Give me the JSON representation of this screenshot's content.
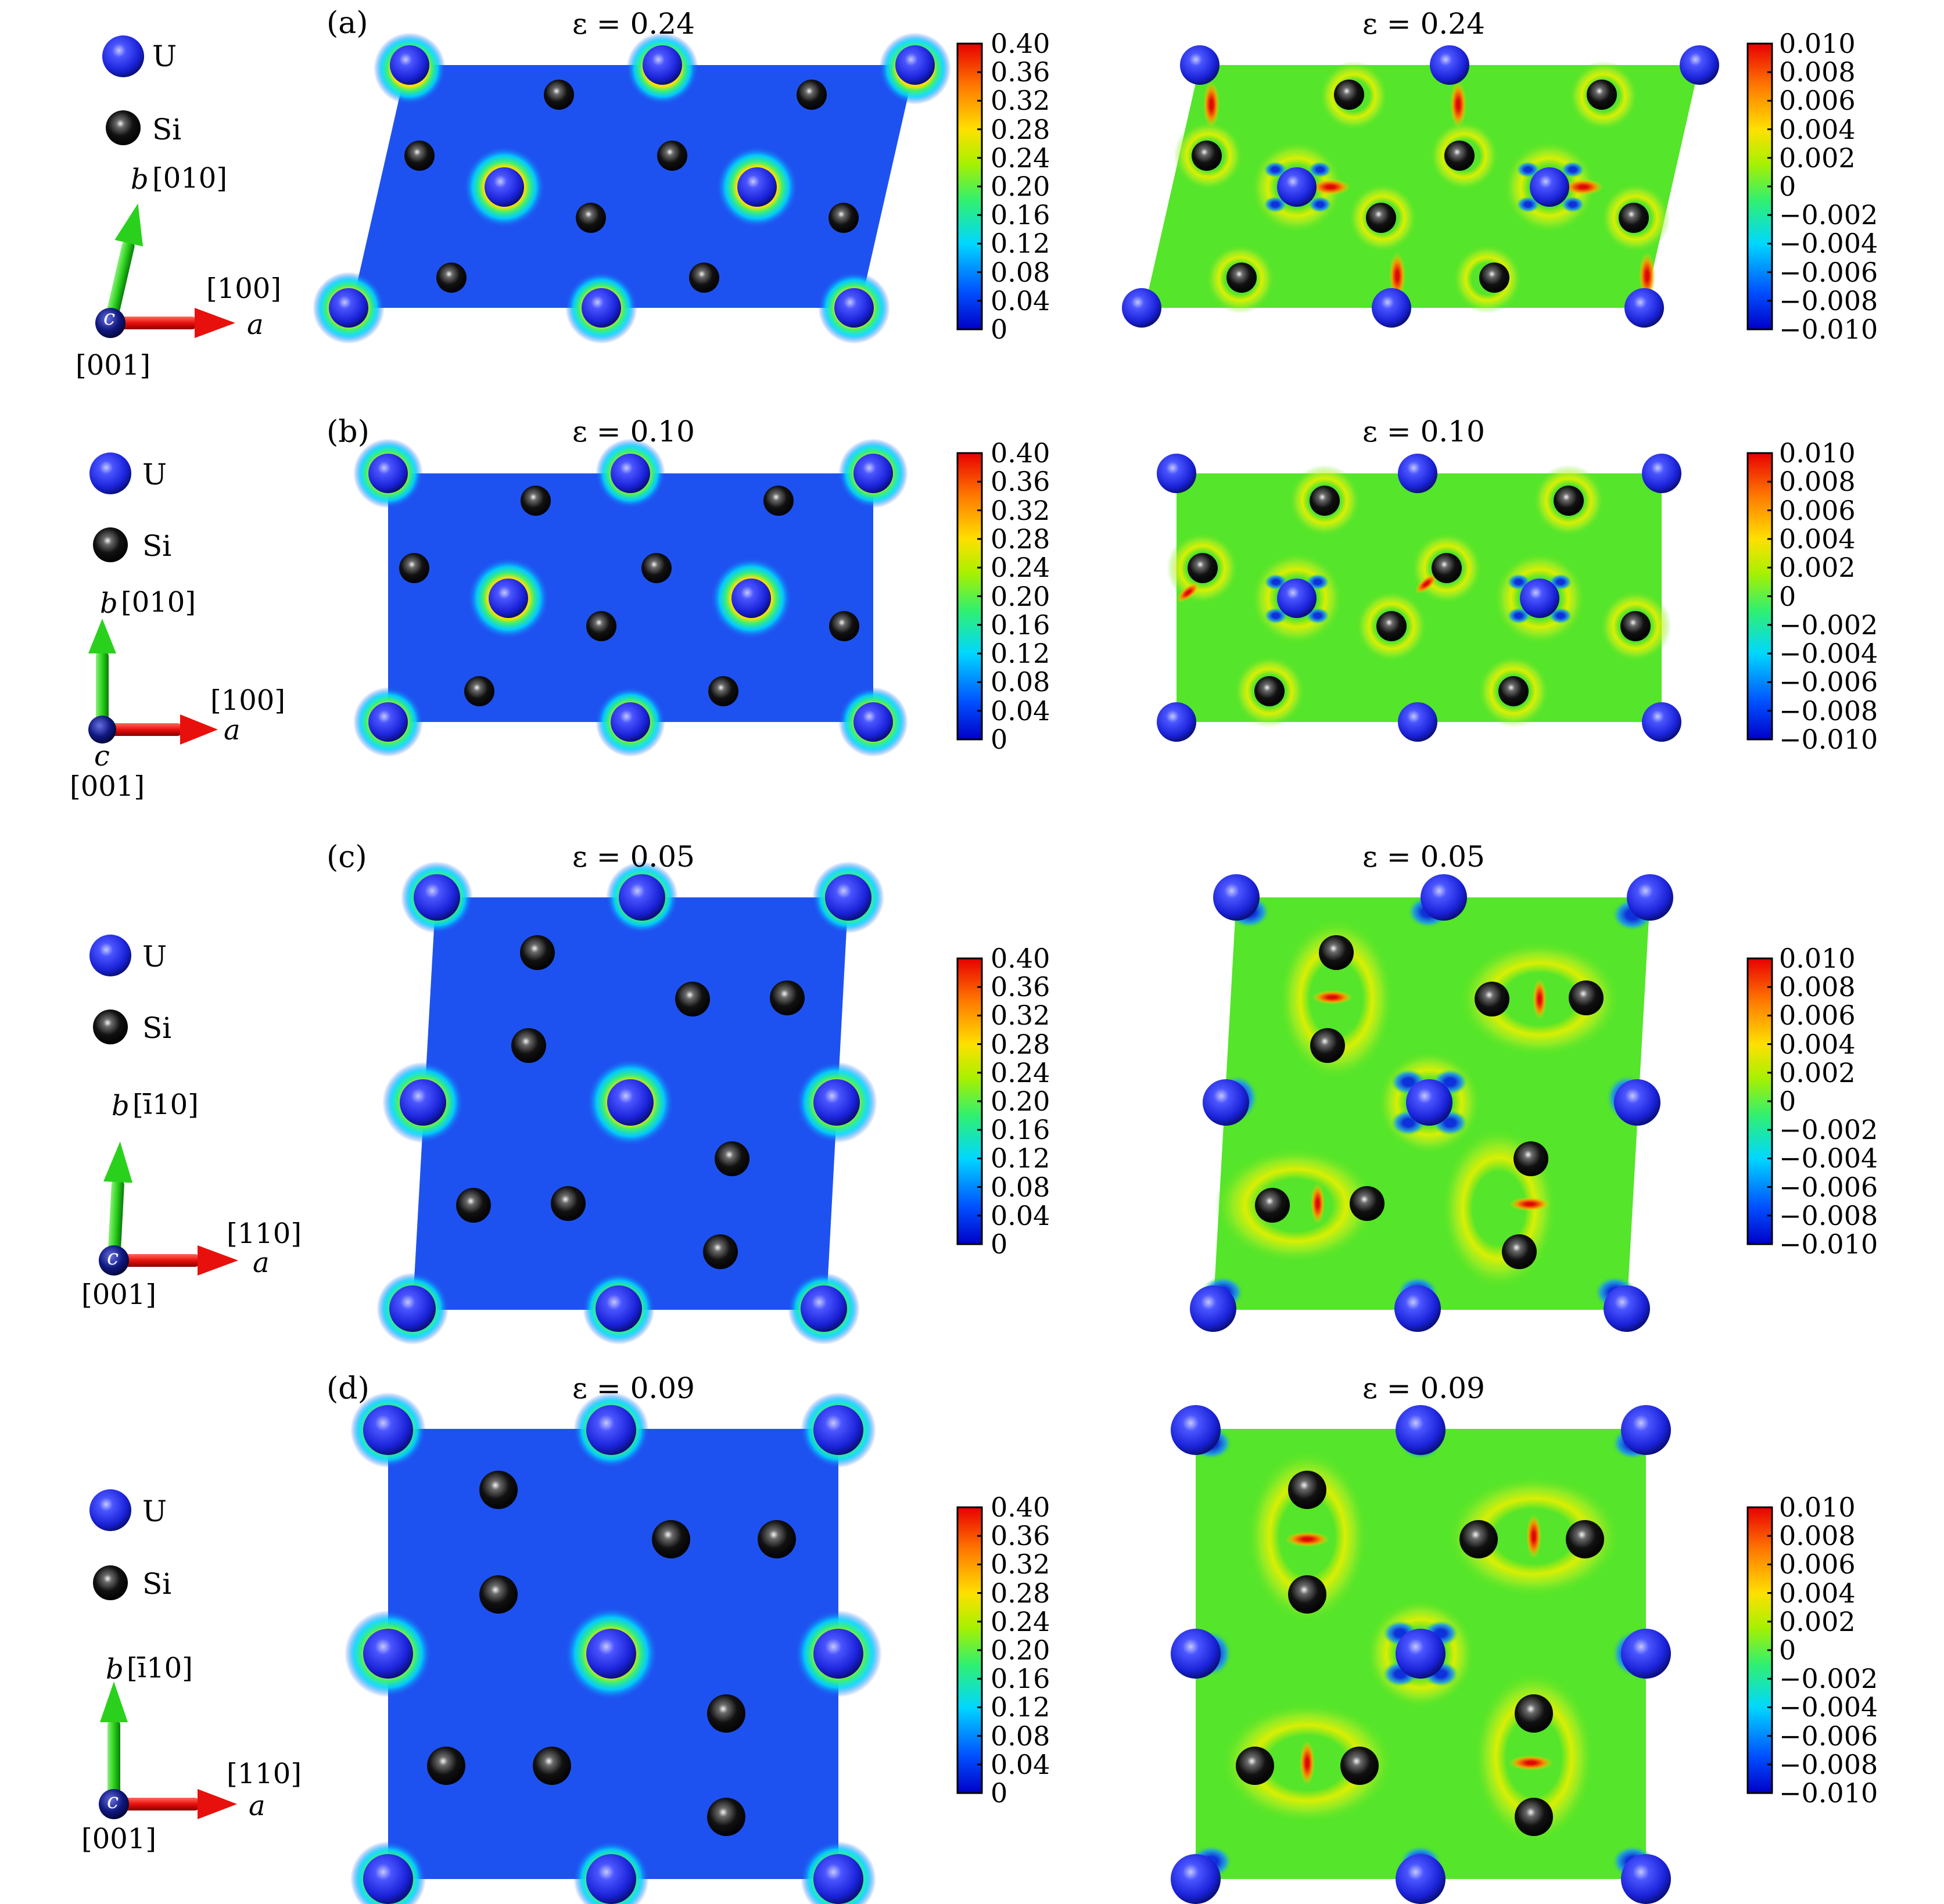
{
  "colors": {
    "uranium": "#1e28e6",
    "silicon": "#0a0a0a",
    "density_background": "#1e52f0",
    "difference_background": "#55e52a",
    "axis_a": "#e8100c",
    "axis_b": "#2ad11c",
    "axis_c": "#0a0a8a"
  },
  "colormap_jet": [
    "#0000c8",
    "#0050ff",
    "#00d7ff",
    "#30f070",
    "#a8f000",
    "#ffe000",
    "#ff7a00",
    "#e80000"
  ],
  "atoms": {
    "uranium_label": "U",
    "silicon_label": "Si"
  },
  "colorbar_density": {
    "ticks": [
      "0.40",
      "0.36",
      "0.32",
      "0.28",
      "0.24",
      "0.20",
      "0.16",
      "0.12",
      "0.08",
      "0.04",
      "0"
    ]
  },
  "colorbar_difference": {
    "ticks": [
      "0.010",
      "0.008",
      "0.006",
      "0.004",
      "0.002",
      "0",
      "−0.002",
      "−0.004",
      "−0.006",
      "−0.008",
      "−0.010"
    ]
  },
  "rows": [
    {
      "tag": "(a)",
      "strain": "ε = 0.24",
      "strain_left": "ε = 0.24",
      "strain_right": "ε = 0.24",
      "axis_b": "b",
      "axis_b_dir": "[010]",
      "axis_a": "a",
      "axis_a_dir": "[100]",
      "axis_c": "c",
      "axis_c_dir": "[001]"
    },
    {
      "tag": "(b)",
      "strain_left": "ε = 0.10",
      "strain_right": "ε = 0.10",
      "axis_b": "b",
      "axis_b_dir": "[010]",
      "axis_a": "a",
      "axis_a_dir": "[100]",
      "axis_c": "c",
      "axis_c_dir": "[001]"
    },
    {
      "tag": "(c)",
      "strain_left": "ε = 0.05",
      "strain_right": "ε = 0.05",
      "axis_b": "b",
      "axis_b_dir": "[ī10]",
      "axis_a": "a",
      "axis_a_dir": "[110]",
      "axis_c": "c",
      "axis_c_dir": "[001]"
    },
    {
      "tag": "(d)",
      "strain_left": "ε = 0.09",
      "strain_right": "ε = 0.09",
      "axis_b": "b",
      "axis_b_dir": "[ī10]",
      "axis_a": "a",
      "axis_a_dir": "[110]",
      "axis_c": "c",
      "axis_c_dir": "[001]"
    }
  ]
}
